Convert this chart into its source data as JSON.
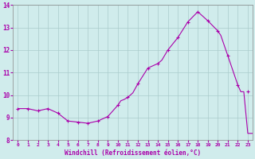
{
  "hours": [
    0,
    1,
    2,
    3,
    4,
    5,
    6,
    7,
    8,
    9,
    10,
    10.3,
    10.6,
    11,
    11.5,
    12,
    13,
    14,
    14.4,
    15,
    16,
    17,
    18,
    19,
    20,
    20.3,
    21,
    22,
    22.3,
    22.6,
    23,
    23.5
  ],
  "values": [
    9.4,
    9.4,
    9.3,
    9.4,
    9.2,
    8.85,
    8.8,
    8.75,
    8.85,
    9.05,
    9.55,
    9.75,
    9.8,
    9.9,
    10.1,
    10.5,
    11.2,
    11.4,
    11.55,
    12.0,
    12.55,
    13.25,
    13.7,
    13.3,
    12.85,
    12.65,
    11.75,
    10.45,
    10.15,
    10.15,
    8.3,
    8.3
  ],
  "marker_hours": [
    0,
    1,
    2,
    3,
    4,
    5,
    6,
    7,
    8,
    9,
    10,
    11,
    12,
    13,
    14,
    15,
    16,
    17,
    18,
    19,
    20,
    21,
    22,
    23
  ],
  "marker_values": [
    9.4,
    9.4,
    9.3,
    9.4,
    9.2,
    8.85,
    8.8,
    8.75,
    8.85,
    9.05,
    9.55,
    9.9,
    10.5,
    11.2,
    11.4,
    12.0,
    12.55,
    13.25,
    13.7,
    13.3,
    12.85,
    11.75,
    10.45,
    10.15
  ],
  "line_color": "#aa00aa",
  "marker_color": "#aa00aa",
  "bg_color": "#d0ecec",
  "grid_color": "#aacccc",
  "tick_color": "#aa00aa",
  "label_color": "#aa00aa",
  "xlabel": "Windchill (Refroidissement éolien,°C)",
  "ylim": [
    8.0,
    14.0
  ],
  "xlim_min": -0.5,
  "xlim_max": 23.5,
  "yticks": [
    8,
    9,
    10,
    11,
    12,
    13,
    14
  ],
  "xticks": [
    0,
    1,
    2,
    3,
    4,
    5,
    6,
    7,
    8,
    9,
    10,
    11,
    12,
    13,
    14,
    15,
    16,
    17,
    18,
    19,
    20,
    21,
    22,
    23
  ]
}
